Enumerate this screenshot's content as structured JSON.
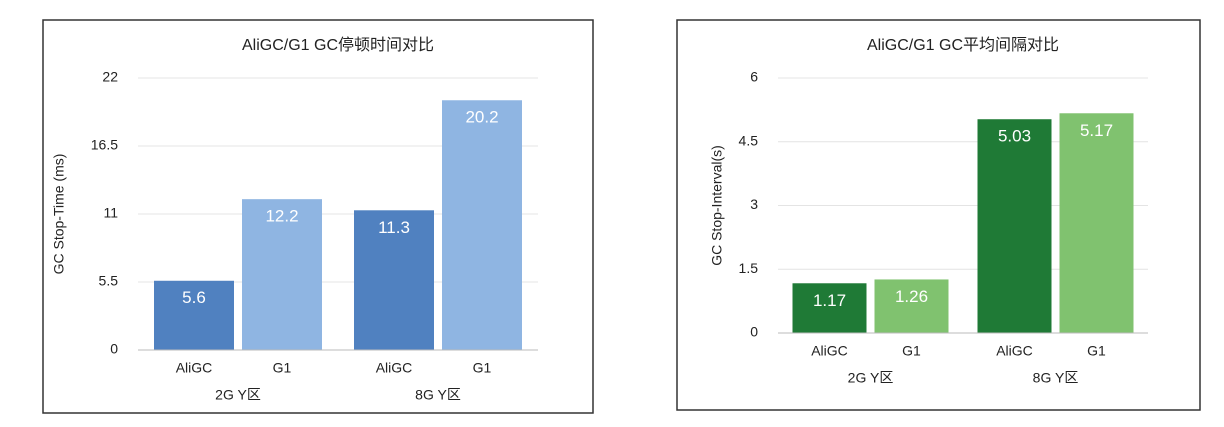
{
  "chart_data": [
    {
      "type": "bar",
      "title": "AliGC/G1 GC停顿时间对比",
      "y_label": "GC Stop-Time (ms)",
      "categories": [
        "2G Y区",
        "8G Y区"
      ],
      "series": [
        {
          "name": "AliGC",
          "color": "#5081c0",
          "values": [
            5.6,
            11.3
          ]
        },
        {
          "name": "G1",
          "color": "#8fb5e2",
          "values": [
            12.2,
            20.2
          ]
        }
      ],
      "ylim": [
        0,
        22
      ],
      "yticks": [
        0,
        5.5,
        11,
        16.5,
        22
      ],
      "grid": true
    },
    {
      "type": "bar",
      "title": "AliGC/G1 GC平均间隔对比",
      "y_label": "GC Stop-Interval(s)",
      "categories": [
        "2G Y区",
        "8G Y区"
      ],
      "series": [
        {
          "name": "AliGC",
          "color": "#1f7a36",
          "values": [
            1.17,
            5.03
          ]
        },
        {
          "name": "G1",
          "color": "#80c26f",
          "values": [
            1.26,
            5.17
          ]
        }
      ],
      "ylim": [
        0,
        6
      ],
      "yticks": [
        0,
        1.5,
        3,
        4.5,
        6
      ],
      "grid": true
    }
  ]
}
